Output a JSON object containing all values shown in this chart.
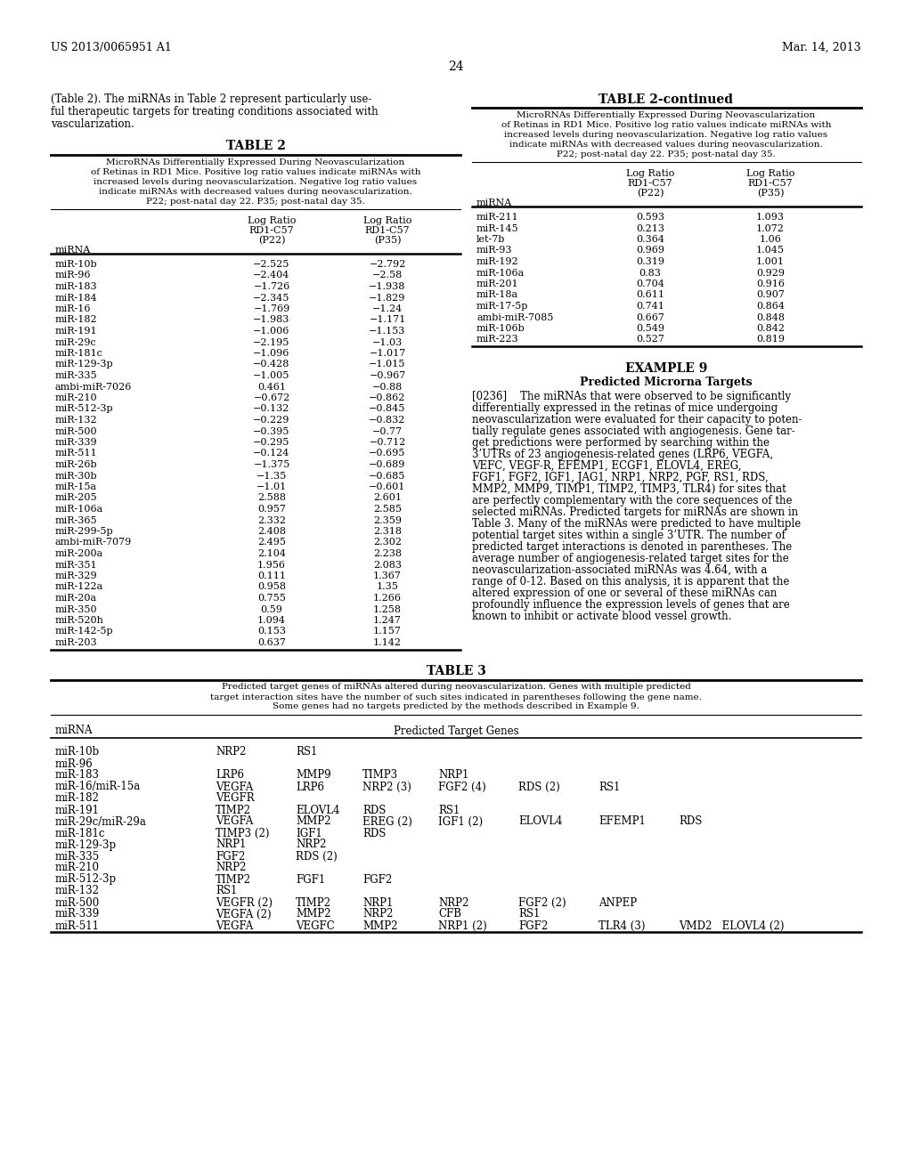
{
  "bg_color": "#ffffff",
  "header_left": "US 2013/0065951 A1",
  "header_right": "Mar. 14, 2013",
  "page_number": "24",
  "left_paragraph": "(Table 2). The miRNAs in Table 2 represent particularly useful therapeutic targets for treating conditions associated with vascularization.",
  "table2_title": "TABLE 2",
  "table2_caption_lines": [
    "MicroRNAs Differentially Expressed During Neovascularization",
    "of Retinas in RD1 Mice. Positive log ratio values indicate miRNAs with",
    "increased levels during neovascularization. Negative log ratio values",
    "indicate miRNAs with decreased values during neovascularization.",
    "P22; post-natal day 22. P35; post-natal day 35."
  ],
  "table2_col1": "miRNA",
  "table2_col2a": "Log Ratio",
  "table2_col2b": "RD1-C57",
  "table2_col2c": "(P22)",
  "table2_col3a": "Log Ratio",
  "table2_col3b": "RD1-C57",
  "table2_col3c": "(P35)",
  "table2_data": [
    [
      "miR-10b",
      "−2.525",
      "−2.792"
    ],
    [
      "miR-96",
      "−2.404",
      "−2.58"
    ],
    [
      "miR-183",
      "−1.726",
      "−1.938"
    ],
    [
      "miR-184",
      "−2.345",
      "−1.829"
    ],
    [
      "miR-16",
      "−1.769",
      "−1.24"
    ],
    [
      "miR-182",
      "−1.983",
      "−1.171"
    ],
    [
      "miR-191",
      "−1.006",
      "−1.153"
    ],
    [
      "miR-29c",
      "−2.195",
      "−1.03"
    ],
    [
      "miR-181c",
      "−1.096",
      "−1.017"
    ],
    [
      "miR-129-3p",
      "−0.428",
      "−1.015"
    ],
    [
      "miR-335",
      "−1.005",
      "−0.967"
    ],
    [
      "ambi-miR-7026",
      "0.461",
      "−0.88"
    ],
    [
      "miR-210",
      "−0.672",
      "−0.862"
    ],
    [
      "miR-512-3p",
      "−0.132",
      "−0.845"
    ],
    [
      "miR-132",
      "−0.229",
      "−0.832"
    ],
    [
      "miR-500",
      "−0.395",
      "−0.77"
    ],
    [
      "miR-339",
      "−0.295",
      "−0.712"
    ],
    [
      "miR-511",
      "−0.124",
      "−0.695"
    ],
    [
      "miR-26b",
      "−1.375",
      "−0.689"
    ],
    [
      "miR-30b",
      "−1.35",
      "−0.685"
    ],
    [
      "miR-15a",
      "−1.01",
      "−0.601"
    ],
    [
      "miR-205",
      "2.588",
      "2.601"
    ],
    [
      "miR-106a",
      "0.957",
      "2.585"
    ],
    [
      "miR-365",
      "2.332",
      "2.359"
    ],
    [
      "miR-299-5p",
      "2.408",
      "2.318"
    ],
    [
      "ambi-miR-7079",
      "2.495",
      "2.302"
    ],
    [
      "miR-200a",
      "2.104",
      "2.238"
    ],
    [
      "miR-351",
      "1.956",
      "2.083"
    ],
    [
      "miR-329",
      "0.111",
      "1.367"
    ],
    [
      "miR-122a",
      "0.958",
      "1.35"
    ],
    [
      "miR-20a",
      "0.755",
      "1.266"
    ],
    [
      "miR-350",
      "0.59",
      "1.258"
    ],
    [
      "miR-520h",
      "1.094",
      "1.247"
    ],
    [
      "miR-142-5p",
      "0.153",
      "1.157"
    ],
    [
      "miR-203",
      "0.637",
      "1.142"
    ]
  ],
  "table2c_title": "TABLE 2-continued",
  "table2c_caption_lines": [
    "MicroRNAs Differentially Expressed During Neovascularization",
    "of Retinas in RD1 Mice. Positive log ratio values indicate miRNAs with",
    "increased levels during neovascularization. Negative log ratio values",
    "indicate miRNAs with decreased values during neovascularization.",
    "P22; post-natal day 22. P35; post-natal day 35."
  ],
  "table2c_data": [
    [
      "miR-211",
      "0.593",
      "1.093"
    ],
    [
      "miR-145",
      "0.213",
      "1.072"
    ],
    [
      "let-7b",
      "0.364",
      "1.06"
    ],
    [
      "miR-93",
      "0.969",
      "1.045"
    ],
    [
      "miR-192",
      "0.319",
      "1.001"
    ],
    [
      "miR-106a",
      "0.83",
      "0.929"
    ],
    [
      "miR-201",
      "0.704",
      "0.916"
    ],
    [
      "miR-18a",
      "0.611",
      "0.907"
    ],
    [
      "miR-17-5p",
      "0.741",
      "0.864"
    ],
    [
      "ambi-miR-7085",
      "0.667",
      "0.848"
    ],
    [
      "miR-106b",
      "0.549",
      "0.842"
    ],
    [
      "miR-223",
      "0.527",
      "0.819"
    ]
  ],
  "example9_title": "EXAMPLE 9",
  "example9_subtitle": "Predicted Microrna Targets",
  "example9_para_lines": [
    "[0236]    The miRNAs that were observed to be significantly",
    "differentially expressed in the retinas of mice undergoing",
    "neovascularization were evaluated for their capacity to poten-",
    "tially regulate genes associated with angiogenesis. Gene tar-",
    "get predictions were performed by searching within the",
    "3’UTRs of 23 angiogenesis-related genes (LRP6, VEGFA,",
    "VEFC, VEGF-R, EFEMP1, ECGF1, ELOVL4, EREG,",
    "FGF1, FGF2, IGF1, JAG1, NRP1, NRP2, PGF, RS1, RDS,",
    "MMP2, MMP9, TIMP1, TIMP2, TIMP3, TLR4) for sites that",
    "are perfectly complementary with the core sequences of the",
    "selected miRNAs. Predicted targets for miRNAs are shown in",
    "Table 3. Many of the miRNAs were predicted to have multiple",
    "potential target sites within a single 3’UTR. The number of",
    "predicted target interactions is denoted in parentheses. The",
    "average number of angiogenesis-related target sites for the",
    "neovascularization-associated miRNAs was 4.64, with a",
    "range of 0-12. Based on this analysis, it is apparent that the",
    "altered expression of one or several of these miRNAs can",
    "profoundly influence the expression levels of genes that are",
    "known to inhibit or activate blood vessel growth."
  ],
  "table3_title": "TABLE 3",
  "table3_caption_lines": [
    "Predicted target genes of miRNAs altered during neovascularization. Genes with multiple predicted",
    "target interaction sites have the number of such sites indicated in parentheses following the gene name.",
    "Some genes had no targets predicted by the methods described in Example 9."
  ],
  "table3_col1": "miRNA",
  "table3_col2": "Predicted Target Genes",
  "table3_data": [
    [
      "miR-10b",
      "NRP2",
      "RS1",
      "",
      "",
      "",
      "",
      ""
    ],
    [
      "miR-96",
      "",
      "",
      "",
      "",
      "",
      "",
      ""
    ],
    [
      "miR-183",
      "LRP6",
      "MMP9",
      "TIMP3",
      "NRP1",
      "",
      "",
      ""
    ],
    [
      "miR-16/miR-15a",
      "VEGFA",
      "LRP6",
      "NRP2 (3)",
      "FGF2 (4)",
      "RDS (2)",
      "RS1",
      ""
    ],
    [
      "miR-182",
      "VEGFR",
      "",
      "",
      "",
      "",
      "",
      ""
    ],
    [
      "miR-191",
      "TIMP2",
      "ELOVL4",
      "RDS",
      "RS1",
      "",
      "",
      ""
    ],
    [
      "miR-29c/miR-29a",
      "VEGFA",
      "MMP2",
      "EREG (2)",
      "IGF1 (2)",
      "ELOVL4",
      "EFEMP1",
      "RDS"
    ],
    [
      "miR-181c",
      "TIMP3 (2)",
      "IGF1",
      "RDS",
      "",
      "",
      "",
      ""
    ],
    [
      "miR-129-3p",
      "NRP1",
      "NRP2",
      "",
      "",
      "",
      "",
      ""
    ],
    [
      "miR-335",
      "FGF2",
      "RDS (2)",
      "",
      "",
      "",
      "",
      ""
    ],
    [
      "miR-210",
      "NRP2",
      "",
      "",
      "",
      "",
      "",
      ""
    ],
    [
      "miR-512-3p",
      "TIMP2",
      "FGF1",
      "FGF2",
      "",
      "",
      "",
      ""
    ],
    [
      "miR-132",
      "RS1",
      "",
      "",
      "",
      "",
      "",
      ""
    ],
    [
      "miR-500",
      "VEGFR (2)",
      "TIMP2",
      "NRP1",
      "NRP2",
      "FGF2 (2)",
      "ANPEP",
      ""
    ],
    [
      "miR-339",
      "VEGFA (2)",
      "MMP2",
      "NRP2",
      "CFB",
      "RS1",
      "",
      ""
    ],
    [
      "miR-511",
      "VEGFA",
      "VEGFC",
      "MMP2",
      "NRP1 (2)",
      "FGF2",
      "TLR4 (3)",
      "VMD2   ELOVL4 (2)"
    ]
  ]
}
